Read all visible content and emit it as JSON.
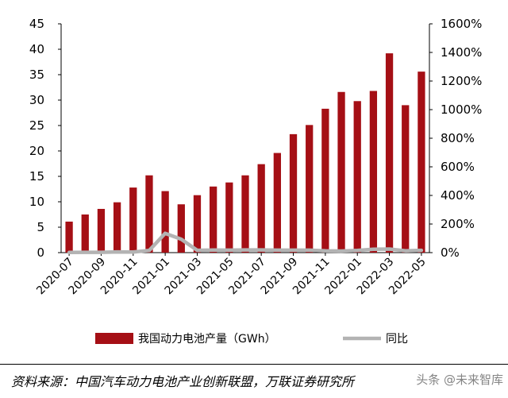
{
  "chart_data": {
    "type": "bar",
    "categories": [
      "2020-07",
      "2020-08",
      "2020-09",
      "2020-10",
      "2020-11",
      "2020-12",
      "2021-01",
      "2021-02",
      "2021-03",
      "2021-04",
      "2021-05",
      "2021-06",
      "2021-07",
      "2021-08",
      "2021-09",
      "2021-10",
      "2021-11",
      "2021-12",
      "2022-01",
      "2022-02",
      "2022-03",
      "2022-04",
      "2022-05"
    ],
    "x_tick_labels": [
      "2020-07",
      "2020-09",
      "2020-11",
      "2021-01",
      "2021-03",
      "2021-05",
      "2021-07",
      "2021-09",
      "2021-11",
      "2022-01",
      "2022-03",
      "2022-05"
    ],
    "series": [
      {
        "name": "我国动力电池产量（GWh）",
        "type": "bar",
        "axis": "left",
        "color": "#a50f15",
        "values": [
          6.1,
          7.5,
          8.6,
          9.9,
          12.8,
          15.2,
          12.1,
          9.5,
          11.3,
          13.0,
          13.8,
          15.2,
          17.4,
          19.6,
          23.3,
          25.1,
          28.3,
          31.6,
          29.8,
          31.8,
          39.2,
          29.0,
          35.6
        ]
      },
      {
        "name": "同比",
        "type": "line",
        "axis": "right",
        "color": "#b3b3b3",
        "values": [
          0.01,
          0.02,
          0.02,
          0.05,
          0.04,
          0.15,
          1.35,
          0.94,
          0.16,
          0.18,
          0.17,
          0.19,
          0.19,
          0.17,
          0.17,
          0.17,
          0.13,
          0.11,
          0.15,
          0.24,
          0.25,
          0.13,
          0.16
        ]
      }
    ],
    "y_left": {
      "lim": [
        0,
        45
      ],
      "ticks": [
        "0",
        "5",
        "10",
        "15",
        "20",
        "25",
        "30",
        "35",
        "40",
        "45"
      ]
    },
    "y_right": {
      "lim": [
        0,
        16
      ],
      "ticks": [
        "0%",
        "200%",
        "400%",
        "600%",
        "800%",
        "1000%",
        "1200%",
        "1400%",
        "1600%"
      ]
    },
    "title": "",
    "xlabel": "",
    "ylabel": "",
    "grid": false,
    "legend_position": "bottom"
  },
  "source_note": "资料来源：中国汽车动力电池产业创新联盟，万联证券研究所",
  "watermark": "头条 @未来智库"
}
